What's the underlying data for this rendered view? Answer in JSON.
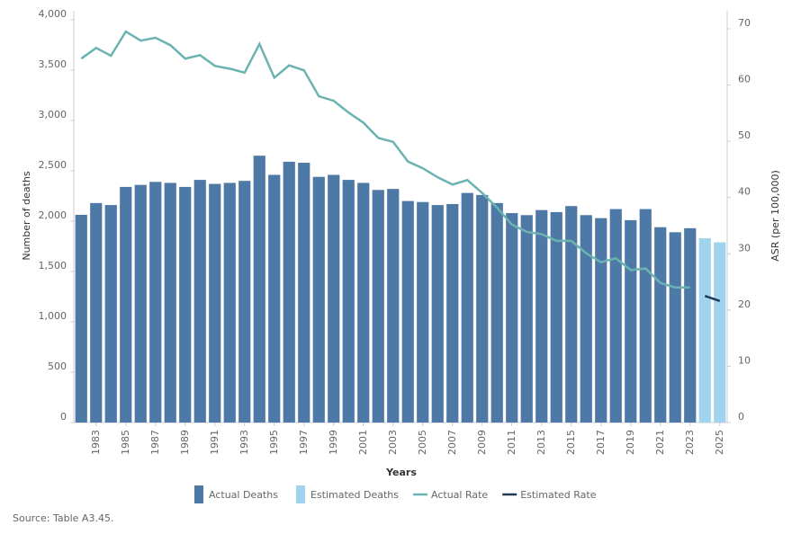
{
  "chart_data": {
    "type": "bar-line",
    "x_label": "Years",
    "y_label": "Number of deaths",
    "y2_label": "ASR (per 100,000)",
    "source": "Source: Table A3.45.",
    "categories": [
      null,
      "1983",
      null,
      "1985",
      null,
      "1987",
      null,
      "1989",
      null,
      "1991",
      null,
      "1993",
      null,
      "1995",
      null,
      "1997",
      null,
      "1999",
      null,
      "2001",
      null,
      "2003",
      null,
      "2005",
      null,
      "2007",
      null,
      "2009",
      null,
      "2011",
      null,
      "2013",
      null,
      "2015",
      null,
      "2017",
      null,
      "2019",
      null,
      "2021",
      null,
      "2023",
      null,
      "2025"
    ],
    "ylim": [
      0,
      4000
    ],
    "yticks": [
      0,
      500,
      {
        "value": 1000,
        "label": "1,000"
      },
      {
        "value": 1500,
        "label": "1,500"
      },
      {
        "value": 2000,
        "label": "2,000"
      },
      {
        "value": 2500,
        "label": "2,500"
      },
      {
        "value": 3000,
        "label": "3,000"
      },
      {
        "value": 3500,
        "label": "3,500"
      },
      {
        "value": 4000,
        "label": "4,000"
      }
    ],
    "y2lim": [
      0,
      71.6
    ],
    "y2ticks": [
      0,
      10,
      20,
      30,
      40,
      50,
      60,
      70
    ],
    "series": [
      {
        "name": "Actual Deaths",
        "kind": "bar",
        "color": "#4e79a7",
        "values": [
          2063,
          2180,
          2160,
          2340,
          2360,
          2390,
          2380,
          2340,
          2410,
          2370,
          2380,
          2400,
          2650,
          2460,
          2590,
          2580,
          2440,
          2460,
          2410,
          2380,
          2310,
          2320,
          2200,
          2190,
          2160,
          2170,
          2280,
          2260,
          2180,
          2080,
          2060,
          2110,
          2090,
          2150,
          2060,
          2030,
          2120,
          2010,
          2120,
          1940,
          1890,
          1930,
          null,
          null
        ]
      },
      {
        "name": "Estimated Deaths",
        "kind": "bar",
        "color": "#a0d4ee",
        "values": [
          null,
          null,
          null,
          null,
          null,
          null,
          null,
          null,
          null,
          null,
          null,
          null,
          null,
          null,
          null,
          null,
          null,
          null,
          null,
          null,
          null,
          null,
          null,
          null,
          null,
          null,
          null,
          null,
          null,
          null,
          null,
          null,
          null,
          null,
          null,
          null,
          null,
          null,
          null,
          null,
          null,
          null,
          1830,
          1790
        ]
      },
      {
        "name": "Actual Rate",
        "kind": "line",
        "axis": "y2",
        "color": "#6bb3b0",
        "values": [
          64.7,
          66.6,
          65.2,
          69.5,
          67.9,
          68.4,
          67.1,
          64.7,
          65.3,
          63.4,
          62.9,
          62.2,
          67.3,
          61.3,
          63.5,
          62.6,
          58.0,
          57.2,
          55.1,
          53.3,
          50.6,
          49.9,
          46.4,
          45.2,
          43.6,
          42.3,
          43.1,
          40.8,
          38.2,
          35.2,
          33.9,
          33.5,
          32.3,
          32.3,
          30.1,
          28.5,
          29.2,
          27.1,
          27.4,
          24.8,
          24.0,
          24.0,
          null,
          null
        ]
      },
      {
        "name": "Estimated Rate",
        "kind": "line",
        "axis": "y2",
        "color": "#1f3b57",
        "values": [
          null,
          null,
          null,
          null,
          null,
          null,
          null,
          null,
          null,
          null,
          null,
          null,
          null,
          null,
          null,
          null,
          null,
          null,
          null,
          null,
          null,
          null,
          null,
          null,
          null,
          null,
          null,
          null,
          null,
          null,
          null,
          null,
          null,
          null,
          null,
          null,
          null,
          null,
          null,
          null,
          null,
          null,
          22.5,
          21.6
        ]
      }
    ]
  }
}
